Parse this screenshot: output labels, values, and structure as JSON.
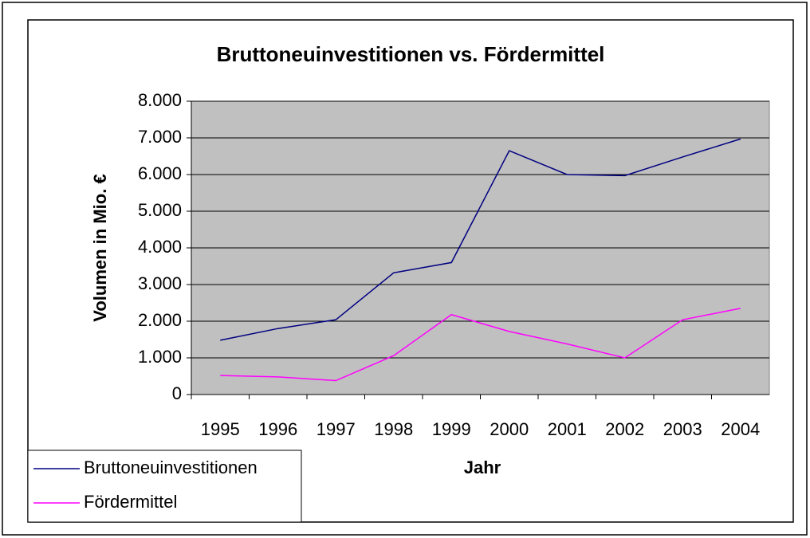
{
  "chart_data": {
    "type": "line",
    "title": "Bruttoneuinvestitionen vs. Fördermittel",
    "x_label": "Jahr",
    "y_label": "Volumen in Mio. €",
    "categories": [
      "1995",
      "1996",
      "1997",
      "1998",
      "1999",
      "2000",
      "2001",
      "2002",
      "2003",
      "2004"
    ],
    "series": [
      {
        "name": "Bruttoneuinvestitionen",
        "color": "#000080",
        "values": [
          1480,
          1800,
          2040,
          3320,
          3600,
          6650,
          6000,
          5970,
          6480,
          6970
        ]
      },
      {
        "name": "Fördermittel",
        "color": "#ff00ff",
        "values": [
          520,
          480,
          380,
          1060,
          2180,
          1720,
          1380,
          1000,
          2040,
          2350
        ]
      }
    ],
    "ylim": [
      0,
      8000
    ],
    "yticks": [
      0,
      {
        "value": 1000,
        "label": "1.000"
      },
      {
        "value": 2000,
        "label": "2.000"
      },
      {
        "value": 3000,
        "label": "3.000"
      },
      {
        "value": 4000,
        "label": "4.000"
      },
      {
        "value": 5000,
        "label": "5.000"
      },
      {
        "value": 6000,
        "label": "6.000"
      },
      {
        "value": 7000,
        "label": "7.000"
      },
      {
        "value": 8000,
        "label": "8.000"
      }
    ],
    "grid": true,
    "legend": "bottom-left"
  }
}
